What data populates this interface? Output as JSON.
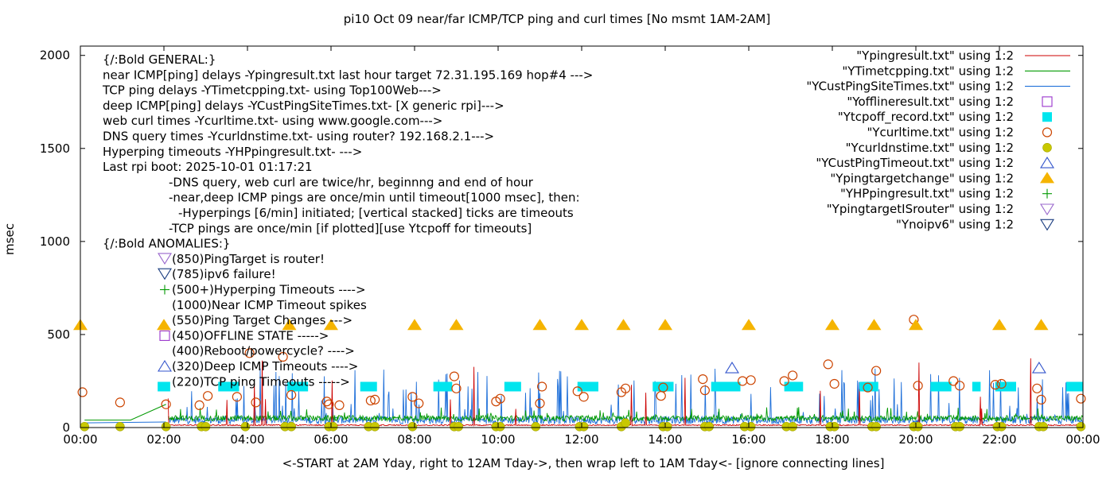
{
  "chart_data": {
    "type": "scatter",
    "title": "pi10 Oct 09  near/far ICMP/TCP ping and curl times [No msmt 1AM-2AM]",
    "xlabel": "<-START at 2AM Yday, right to 12AM Tday->, then wrap left to 1AM Tday<- [ignore connecting lines]",
    "ylabel": "msec",
    "xlim": [
      0,
      24
    ],
    "ylim": [
      0,
      2050
    ],
    "x_ticks": [
      "00:00",
      "02:00",
      "04:00",
      "06:00",
      "08:00",
      "10:00",
      "12:00",
      "14:00",
      "16:00",
      "18:00",
      "20:00",
      "22:00",
      "00:00"
    ],
    "y_ticks": [
      "0",
      "500",
      "1000",
      "1500",
      "2000"
    ],
    "y_tick_values": [
      0,
      500,
      1000,
      1500,
      2000
    ],
    "grid": false,
    "legend_position": "top-right",
    "annotation_lines": [
      "{/:Bold GENERAL:}",
      "near ICMP[ping] delays -Ypingresult.txt last hour target 72.31.195.169 hop#4 --->",
      "TCP ping delays -YTimetcpping.txt- using Top100Web--->",
      "deep ICMP[ping] delays -YCustPingSiteTimes.txt- [X generic rpi]--->",
      "web curl times -Ycurltime.txt- using www.google.com--->",
      "DNS query times -Ycurldnstime.txt- using router? 192.168.2.1--->",
      "Hyperping timeouts -YHPpingresult.txt- --->",
      "Last rpi boot: 2025-10-01 01:17:21",
      "-DNS query, web curl are twice/hr, beginnng and end of hour",
      "-near,deep ICMP pings are once/min until timeout[1000 msec], then:",
      "-Hyperpings [6/min] initiated; [vertical stacked] ticks are timeouts",
      "-TCP pings are once/min [if plotted][use Ytcpoff for timeouts]",
      "{/:Bold ANOMALIES:}"
    ],
    "anomaly_labels": [
      {
        "text": "(850)PingTarget is router!",
        "marker": "tri-down-violet"
      },
      {
        "text": "(785)ipv6 failure!",
        "marker": "tri-down-navy"
      },
      {
        "text": "(500+)Hyperping Timeouts ---->",
        "marker": "plus-green"
      },
      {
        "text": "(1000)Near ICMP Timeout spikes",
        "marker": "none"
      },
      {
        "text": "(550)Ping Target Changes --->",
        "marker": "none"
      },
      {
        "text": "(450)OFFLINE STATE ----->",
        "marker": "square-purple"
      },
      {
        "text": "(400)Reboot/powercycle? ---->",
        "marker": "none"
      },
      {
        "text": "(320)Deep ICMP Timeouts ---->",
        "marker": "tri-up-blue"
      },
      {
        "text": "(220)TCP ping Timeouts ----->",
        "marker": "none"
      }
    ],
    "series": [
      {
        "name": "\"Ypingresult.txt\" using 1:2",
        "style": "line",
        "color": "#cc0000",
        "stats": {
          "baseline": 10,
          "typical_spikes": [
            230,
            300,
            380
          ]
        }
      },
      {
        "name": "\"YTimetcpping.txt\" using 1:2",
        "style": "line",
        "color": "#009900",
        "stats": {
          "baseline": 50,
          "typical_range": [
            20,
            100
          ]
        }
      },
      {
        "name": "\"YCustPingSiteTimes.txt\" using 1:2",
        "style": "line",
        "color": "#1e6fd9",
        "stats": {
          "baseline": 40,
          "typical_range": [
            20,
            200
          ],
          "max_spike": 280
        }
      },
      {
        "name": "\"Yofflineresult.txt\" using 1:2",
        "style": "hollow-square",
        "color": "#9933cc",
        "points": []
      },
      {
        "name": "\"Ytcpoff_record.txt\" using 1:2",
        "style": "filled-square",
        "color": "#00e5ee",
        "segments": [
          [
            1.85,
            2.15
          ],
          [
            3.3,
            3.8
          ],
          [
            4.95,
            5.45
          ],
          [
            6.7,
            7.1
          ],
          [
            8.45,
            8.9
          ],
          [
            10.15,
            10.55
          ],
          [
            11.9,
            12.4
          ],
          [
            13.7,
            14.2
          ],
          [
            15.1,
            15.8
          ],
          [
            16.85,
            17.3
          ],
          [
            18.65,
            19.1
          ],
          [
            20.35,
            20.85
          ],
          [
            21.35,
            21.55
          ],
          [
            21.9,
            22.4
          ],
          [
            23.6,
            24.0
          ]
        ],
        "value": 220
      },
      {
        "name": "\"Ycurltime.txt\" using 1:2",
        "style": "hollow-circle",
        "color": "#cc4400",
        "x": [
          0.05,
          0.95,
          2.05,
          2.85,
          3.05,
          3.75,
          4.05,
          4.2,
          4.85,
          5.05,
          5.9,
          5.95,
          6.2,
          6.95,
          7.05,
          7.95,
          8.1,
          8.95,
          9.0,
          9.95,
          10.05,
          11.0,
          11.05,
          11.9,
          12.05,
          12.95,
          13.05,
          13.9,
          13.95,
          14.9,
          14.95,
          15.85,
          16.05,
          16.85,
          17.05,
          17.9,
          18.05,
          18.85,
          19.05,
          19.95,
          20.05,
          20.9,
          21.05,
          21.9,
          22.05,
          22.9,
          23.0,
          23.95
        ],
        "y": [
          190,
          135,
          125,
          120,
          170,
          165,
          400,
          135,
          380,
          175,
          140,
          125,
          120,
          145,
          150,
          165,
          130,
          275,
          210,
          140,
          155,
          130,
          220,
          195,
          165,
          190,
          210,
          170,
          215,
          260,
          200,
          250,
          255,
          250,
          280,
          340,
          235,
          215,
          305,
          580,
          225,
          250,
          225,
          230,
          235,
          210,
          150,
          155
        ]
      },
      {
        "name": "\"Ycurldnstime.txt\" using 1:2",
        "style": "filled-circle",
        "color": "#c8c800",
        "x": [
          0.1,
          0.95,
          2.05,
          2.9,
          3.0,
          3.95,
          4.9,
          5.05,
          5.95,
          6.05,
          6.9,
          7.05,
          7.95,
          8.95,
          9.05,
          9.95,
          10.05,
          10.9,
          11.95,
          12.05,
          12.95,
          13.05,
          13.95,
          14.05,
          14.95,
          15.05,
          15.9,
          16.05,
          16.9,
          17.05,
          17.95,
          18.05,
          18.95,
          19.05,
          19.95,
          20.05,
          20.95,
          21.05,
          21.95,
          22.05,
          22.95,
          23.05,
          23.95
        ],
        "y": [
          5,
          5,
          5,
          5,
          5,
          5,
          5,
          5,
          5,
          5,
          5,
          5,
          5,
          5,
          5,
          5,
          5,
          5,
          5,
          5,
          5,
          25,
          5,
          5,
          5,
          5,
          5,
          5,
          5,
          5,
          5,
          5,
          5,
          5,
          5,
          5,
          5,
          5,
          5,
          5,
          5,
          5,
          5
        ]
      },
      {
        "name": "\"YCustPingTimeout.txt\" using 1:2",
        "style": "hollow-triangle-up",
        "color": "#3355cc",
        "x": [
          15.6,
          22.95
        ],
        "y": [
          320,
          320
        ]
      },
      {
        "name": "\"Ypingtargetchange\" using 1:2",
        "style": "filled-triangle-up",
        "color": "#f5b400",
        "x": [
          0.0,
          2.0,
          5.0,
          6.0,
          8.0,
          9.0,
          11.0,
          12.0,
          13.0,
          14.0,
          16.0,
          18.0,
          19.0,
          20.0,
          22.0,
          23.0
        ],
        "y": [
          550,
          550,
          550,
          550,
          550,
          550,
          550,
          550,
          550,
          550,
          550,
          550,
          550,
          550,
          550,
          550
        ]
      },
      {
        "name": "\"YHPpingresult.txt\" using 1:2",
        "style": "plus",
        "color": "#009900",
        "points": []
      },
      {
        "name": "\"YpingtargetISrouter\" using 1:2",
        "style": "hollow-triangle-down",
        "color": "#9966cc",
        "points": []
      },
      {
        "name": "\"Ynoipv6\" using 1:2",
        "style": "hollow-triangle-down",
        "color": "#1a3d80",
        "points": []
      }
    ],
    "colors": {
      "axis": "#000000",
      "near_icmp": "#cc0000",
      "tcp": "#009900",
      "deep_icmp": "#1e6fd9",
      "offline": "#9933cc",
      "tcpoff": "#00e5ee",
      "curl": "#cc4400",
      "dns": "#c8c800",
      "deep_timeout": "#3355cc",
      "target_change": "#f5b400",
      "router": "#9966cc",
      "noipv6": "#1a3d80"
    }
  }
}
